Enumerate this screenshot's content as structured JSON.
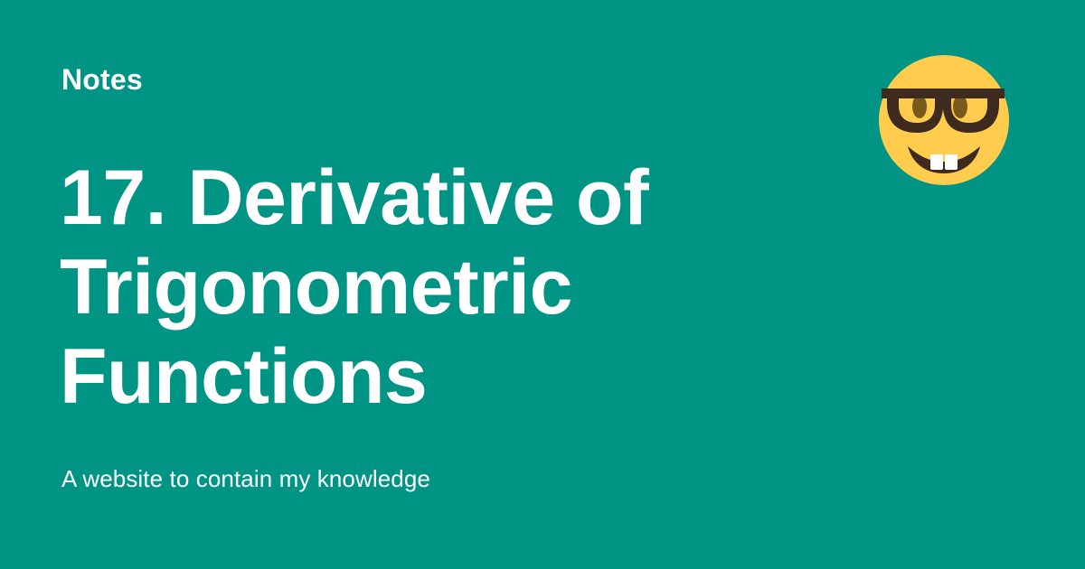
{
  "site": {
    "name": "Notes",
    "description": "A website to contain my knowledge",
    "logo_icon": "nerd-face-emoji-icon"
  },
  "page": {
    "title_lines": [
      "17. Derivative of",
      "Trigonometric",
      "Functions"
    ]
  },
  "colors": {
    "background": "#009485",
    "text": "#ffffff",
    "emoji_face": "#ffcc4d",
    "emoji_features": "#3e2a1e",
    "emoji_eyes": "#7a5a1a"
  }
}
